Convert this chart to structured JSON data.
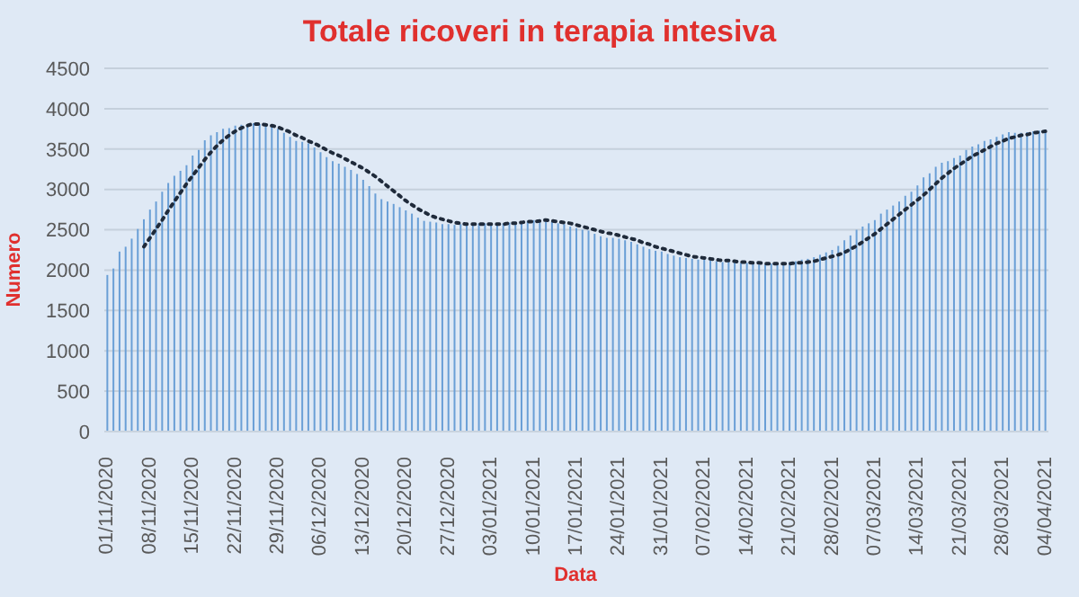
{
  "chart_data": {
    "type": "bar",
    "title": "Totale ricoveri in terapia intesiva",
    "xlabel": "Data",
    "ylabel": "Numero",
    "categories": [
      "01/11/2020",
      null,
      null,
      null,
      null,
      null,
      null,
      "08/11/2020",
      null,
      null,
      null,
      null,
      null,
      null,
      "15/11/2020",
      null,
      null,
      null,
      null,
      null,
      null,
      "22/11/2020",
      null,
      null,
      null,
      null,
      null,
      null,
      "29/11/2020",
      null,
      null,
      null,
      null,
      null,
      null,
      "06/12/2020",
      null,
      null,
      null,
      null,
      null,
      null,
      "13/12/2020",
      null,
      null,
      null,
      null,
      null,
      null,
      "20/12/2020",
      null,
      null,
      null,
      null,
      null,
      null,
      "27/12/2020",
      null,
      null,
      null,
      null,
      null,
      null,
      "03/01/2021",
      null,
      null,
      null,
      null,
      null,
      null,
      "10/01/2021",
      null,
      null,
      null,
      null,
      null,
      null,
      "17/01/2021",
      null,
      null,
      null,
      null,
      null,
      null,
      "24/01/2021",
      null,
      null,
      null,
      null,
      null,
      null,
      "31/01/2021",
      null,
      null,
      null,
      null,
      null,
      null,
      "07/02/2021",
      null,
      null,
      null,
      null,
      null,
      null,
      "14/02/2021",
      null,
      null,
      null,
      null,
      null,
      null,
      "21/02/2021",
      null,
      null,
      null,
      null,
      null,
      null,
      "28/02/2021",
      null,
      null,
      null,
      null,
      null,
      null,
      "07/03/2021",
      null,
      null,
      null,
      null,
      null,
      null,
      "14/03/2021",
      null,
      null,
      null,
      null,
      null,
      null,
      "21/03/2021",
      null,
      null,
      null,
      null,
      null,
      null,
      "28/03/2021",
      null,
      null,
      null,
      null,
      null,
      null,
      "04/04/2021"
    ],
    "series": [
      {
        "color": "#6a9fd6",
        "values": [
          1940,
          2020,
          2230,
          2290,
          2390,
          2510,
          2630,
          2750,
          2850,
          2970,
          3080,
          3170,
          3230,
          3300,
          3420,
          3490,
          3610,
          3670,
          3710,
          3750,
          3760,
          3790,
          3800,
          3810,
          3820,
          3810,
          3800,
          3770,
          3750,
          3700,
          3650,
          3600,
          3590,
          3570,
          3520,
          3460,
          3400,
          3350,
          3320,
          3280,
          3240,
          3190,
          3120,
          3040,
          2950,
          2880,
          2850,
          2820,
          2780,
          2740,
          2700,
          2650,
          2610,
          2600,
          2590,
          2570,
          2570,
          2560,
          2570,
          2560,
          2570,
          2580,
          2580,
          2570,
          2560,
          2580,
          2590,
          2600,
          2600,
          2610,
          2620,
          2630,
          2610,
          2600,
          2580,
          2570,
          2540,
          2520,
          2500,
          2490,
          2450,
          2420,
          2400,
          2400,
          2390,
          2370,
          2350,
          2320,
          2290,
          2260,
          2240,
          2230,
          2200,
          2180,
          2160,
          2150,
          2140,
          2130,
          2130,
          2120,
          2110,
          2100,
          2100,
          2100,
          2090,
          2090,
          2080,
          2070,
          2070,
          2080,
          2080,
          2090,
          2100,
          2110,
          2130,
          2140,
          2160,
          2190,
          2220,
          2250,
          2300,
          2370,
          2430,
          2500,
          2540,
          2580,
          2620,
          2700,
          2750,
          2800,
          2850,
          2920,
          2970,
          3050,
          3150,
          3200,
          3280,
          3330,
          3350,
          3390,
          3420,
          3490,
          3530,
          3560,
          3600,
          3620,
          3650,
          3680,
          3710,
          3700,
          3700,
          3710,
          3720,
          3730,
          3740
        ]
      },
      {
        "type": "line",
        "color": "#1f2a3a",
        "line_style": "dotted",
        "marker": "none",
        "values": [
          null,
          null,
          null,
          null,
          null,
          null,
          2290,
          2400,
          2510,
          2620,
          2740,
          2850,
          2960,
          3070,
          3170,
          3270,
          3370,
          3460,
          3540,
          3610,
          3670,
          3720,
          3760,
          3790,
          3810,
          3810,
          3800,
          3790,
          3770,
          3740,
          3710,
          3670,
          3640,
          3600,
          3570,
          3530,
          3490,
          3450,
          3420,
          3380,
          3340,
          3300,
          3260,
          3210,
          3160,
          3100,
          3040,
          2980,
          2920,
          2860,
          2810,
          2760,
          2720,
          2680,
          2650,
          2630,
          2610,
          2590,
          2580,
          2570,
          2570,
          2570,
          2570,
          2570,
          2570,
          2570,
          2580,
          2580,
          2590,
          2600,
          2600,
          2610,
          2620,
          2610,
          2600,
          2590,
          2580,
          2560,
          2540,
          2520,
          2500,
          2480,
          2460,
          2450,
          2430,
          2410,
          2390,
          2370,
          2340,
          2320,
          2290,
          2270,
          2250,
          2230,
          2210,
          2190,
          2170,
          2160,
          2150,
          2140,
          2130,
          2120,
          2120,
          2110,
          2100,
          2100,
          2090,
          2090,
          2080,
          2080,
          2080,
          2080,
          2080,
          2090,
          2090,
          2100,
          2110,
          2130,
          2150,
          2170,
          2190,
          2220,
          2260,
          2300,
          2350,
          2400,
          2450,
          2510,
          2570,
          2630,
          2690,
          2750,
          2810,
          2870,
          2930,
          3000,
          3070,
          3140,
          3200,
          3260,
          3310,
          3360,
          3410,
          3450,
          3490,
          3530,
          3570,
          3600,
          3630,
          3650,
          3670,
          3680,
          3700,
          3710,
          3720
        ]
      }
    ],
    "ylim": [
      0,
      4500
    ],
    "yticks": [
      0,
      500,
      1000,
      1500,
      2000,
      2500,
      3000,
      3500,
      4000,
      4500
    ],
    "grid": "y"
  }
}
